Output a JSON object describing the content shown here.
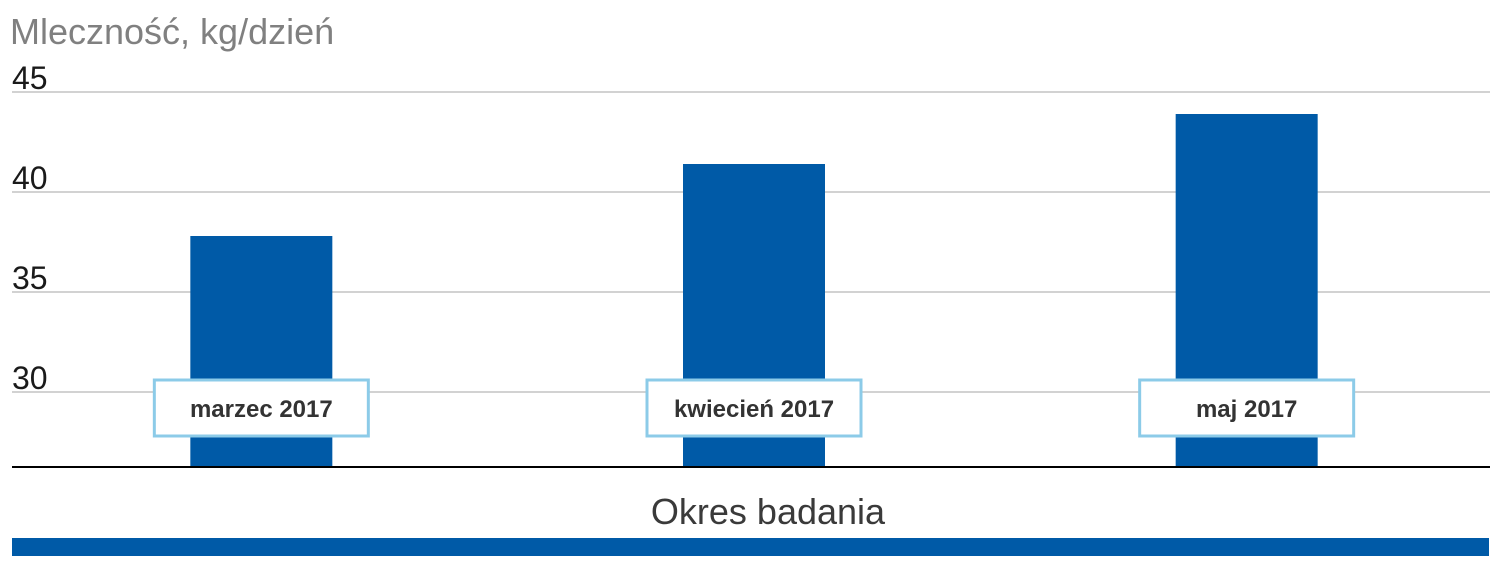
{
  "chart_data": {
    "type": "bar",
    "title": "",
    "ylabel": "Mleczność, kg/dzień",
    "xlabel": "Okres badania",
    "categories": [
      "marzec 2017",
      "kwiecień 2017",
      "maj 2017"
    ],
    "values": [
      37.8,
      41.4,
      43.9
    ],
    "ylim": [
      26.25,
      45
    ],
    "yticks": [
      30,
      35,
      40,
      45
    ],
    "grid": true,
    "colors": {
      "bar": "#005aa7",
      "label_border": "#8ccbe8",
      "gridline": "#a6a6a6",
      "axis": "#000000",
      "footer_band": "#005aa7"
    }
  }
}
